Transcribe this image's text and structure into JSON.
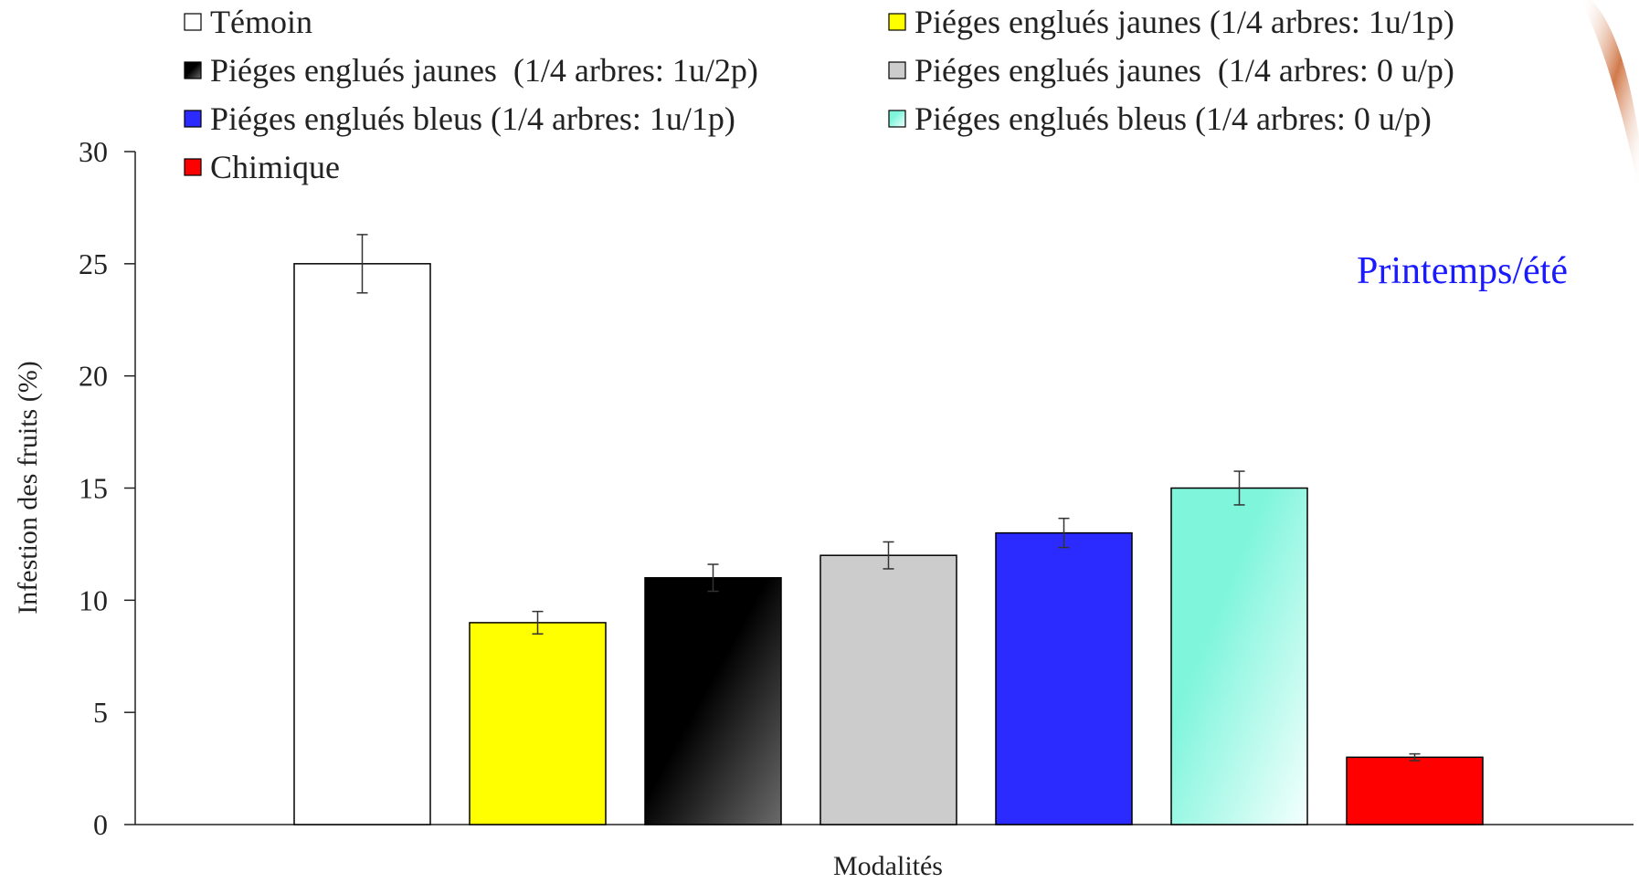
{
  "chart_data": {
    "type": "bar",
    "xlabel": "Modalités",
    "ylabel": "Infestion des fruits (%)",
    "ylim": [
      0,
      30
    ],
    "yticks": [
      0,
      5,
      10,
      15,
      20,
      25,
      30
    ],
    "grid": false,
    "legend_position": "top",
    "annotation": "Printemps/été",
    "annotation_color": "#1a1aff",
    "series": [
      {
        "name": "Témoin",
        "value": 25,
        "error": 1.3,
        "color": "#ffffff"
      },
      {
        "name": "Piéges englués jaunes (1/4 arbres: 1u/1p)",
        "value": 9,
        "error": 0.5,
        "color": "#ffff00"
      },
      {
        "name": "Piéges englués jaunes  (1/4 arbres: 1u/2p)",
        "value": 11,
        "error": 0.6,
        "color": "#000000",
        "color2": "#666666"
      },
      {
        "name": "Piéges englués jaunes  (1/4 arbres: 0 u/p)",
        "value": 12,
        "error": 0.6,
        "color": "#cccccc"
      },
      {
        "name": "Piéges englués bleus (1/4 arbres: 1u/1p)",
        "value": 13,
        "error": 0.65,
        "color": "#2b2bff"
      },
      {
        "name": "Piéges englués bleus (1/4 arbres: 0 u/p)",
        "value": 15,
        "error": 0.75,
        "color": "#7ff5dc",
        "color2": "#f4fffd"
      },
      {
        "name": "Chimique",
        "value": 3,
        "error": 0.15,
        "color": "#ff0000"
      }
    ]
  }
}
